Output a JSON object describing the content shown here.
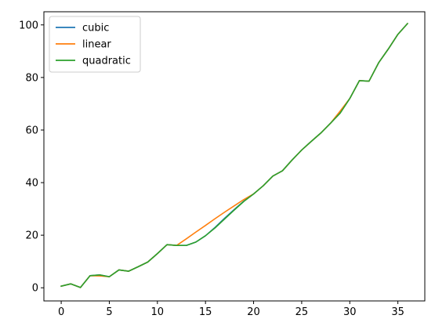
{
  "chart_data": {
    "type": "line",
    "title": "",
    "xlabel": "",
    "ylabel": "",
    "xlim": [
      -1.8,
      37.8
    ],
    "ylim": [
      -5,
      105
    ],
    "xticks": [
      0,
      5,
      10,
      15,
      20,
      25,
      30,
      35
    ],
    "yticks": [
      0,
      20,
      40,
      60,
      80,
      100
    ],
    "grid": false,
    "legend_position": "top-left",
    "series": [
      {
        "name": "cubic",
        "color": "#1f77b4",
        "x": [
          0,
          1,
          2,
          3,
          4,
          5,
          6,
          7,
          8,
          9,
          10,
          11,
          12,
          13,
          14,
          15,
          16,
          17,
          18,
          19,
          20,
          21,
          22,
          23,
          24,
          25,
          26,
          27,
          28,
          29,
          30,
          31,
          32,
          33,
          34,
          35,
          36
        ],
        "y": [
          0.6,
          1.5,
          0.1,
          4.6,
          4.9,
          4.2,
          6.8,
          6.3,
          8.0,
          9.8,
          13.0,
          16.4,
          16.1,
          16.1,
          17.4,
          19.8,
          23.0,
          26.5,
          29.8,
          33.0,
          35.7,
          38.8,
          42.5,
          44.5,
          48.6,
          52.4,
          55.7,
          58.9,
          62.6,
          66.6,
          72.0,
          78.8,
          78.6,
          85.6,
          90.8,
          96.4,
          100.5
        ]
      },
      {
        "name": "linear",
        "color": "#ff7f0e",
        "x": [
          0,
          1,
          2,
          3,
          4,
          5,
          6,
          7,
          8,
          9,
          10,
          11,
          12,
          13,
          14,
          15,
          16,
          17,
          18,
          19,
          20,
          21,
          22,
          23,
          24,
          25,
          26,
          27,
          28,
          29,
          30,
          31,
          32,
          33,
          34,
          35,
          36
        ],
        "y": [
          0.6,
          1.5,
          0.1,
          4.6,
          4.5,
          4.2,
          6.8,
          6.3,
          8.0,
          9.8,
          13.0,
          16.4,
          16.1,
          18.6,
          21.2,
          23.7,
          26.3,
          28.8,
          31.2,
          33.6,
          35.7,
          38.8,
          42.5,
          44.5,
          48.6,
          52.4,
          55.7,
          58.9,
          62.6,
          67.2,
          72.0,
          78.8,
          78.6,
          85.6,
          90.8,
          96.4,
          100.5
        ]
      },
      {
        "name": "quadratic",
        "color": "#2ca02c",
        "x": [
          0,
          1,
          2,
          3,
          4,
          5,
          6,
          7,
          8,
          9,
          10,
          11,
          12,
          13,
          14,
          15,
          16,
          17,
          18,
          19,
          20,
          21,
          22,
          23,
          24,
          25,
          26,
          27,
          28,
          29,
          30,
          31,
          32,
          33,
          34,
          35,
          36
        ],
        "y": [
          0.6,
          1.5,
          0.1,
          4.6,
          4.9,
          4.2,
          6.8,
          6.3,
          8.0,
          9.8,
          13.0,
          16.4,
          16.1,
          16.1,
          17.4,
          19.8,
          22.8,
          26.2,
          29.6,
          32.9,
          35.7,
          38.8,
          42.5,
          44.5,
          48.6,
          52.4,
          55.7,
          58.9,
          62.6,
          66.4,
          72.0,
          78.8,
          78.6,
          85.6,
          90.8,
          96.4,
          100.5
        ]
      }
    ]
  }
}
